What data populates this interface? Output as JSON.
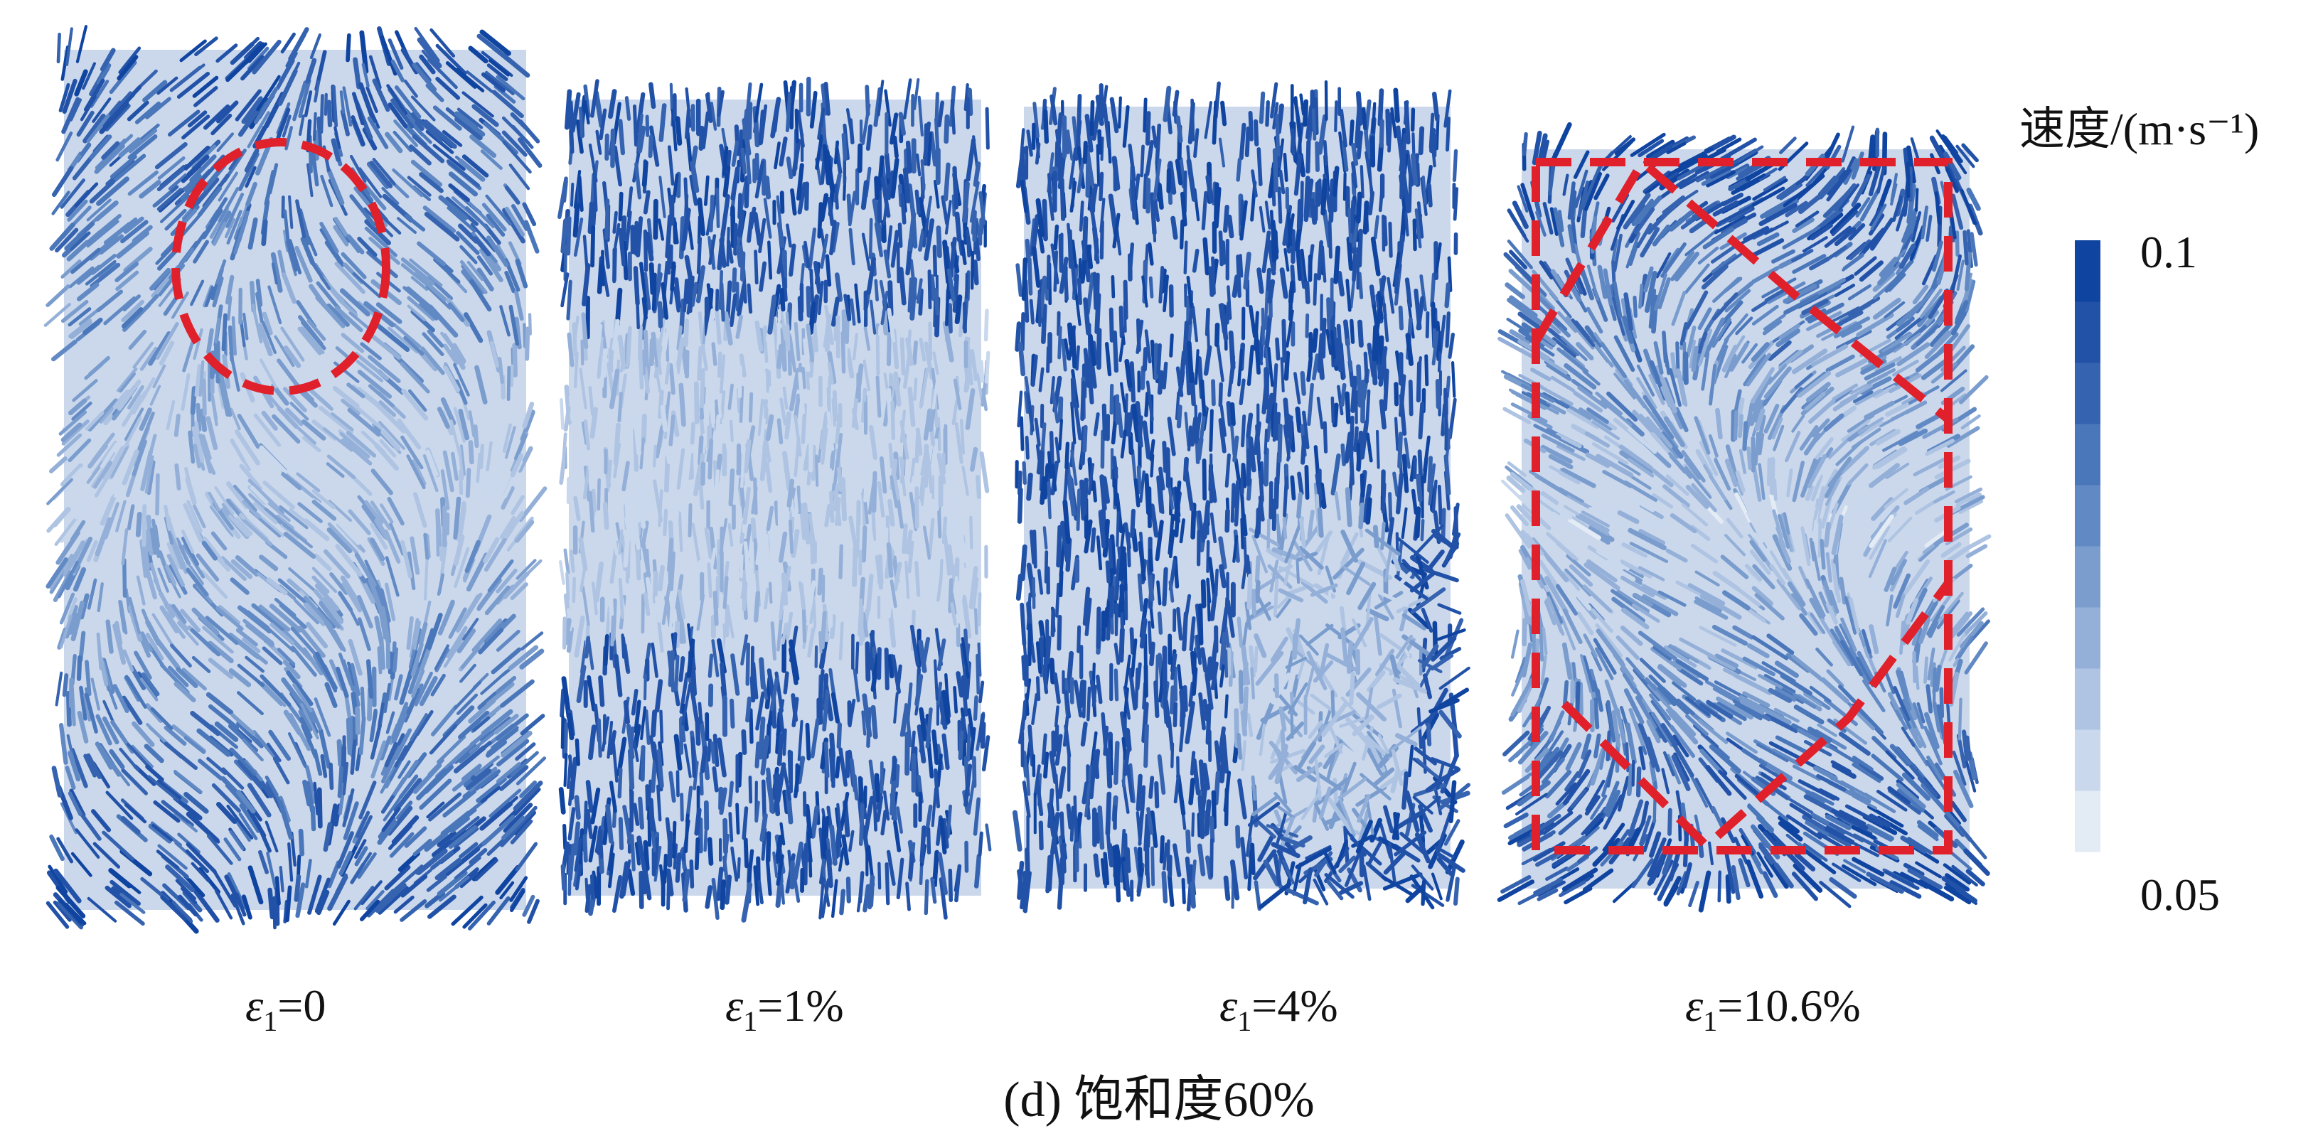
{
  "colorbar": {
    "title": "速度/(m·s⁻¹)",
    "max": "0.1",
    "min": "0.05",
    "colors": [
      "#e3ebf5",
      "#c9d8ec",
      "#aec4e2",
      "#94b0d8",
      "#7a9dce",
      "#6189c4",
      "#4a76ba",
      "#3563b0",
      "#2252a8",
      "#0f44a0"
    ]
  },
  "panels": [
    {
      "symbol": "ε",
      "subscript": "1",
      "value": "=0"
    },
    {
      "symbol": "ε",
      "subscript": "1",
      "value": "=1%"
    },
    {
      "symbol": "ε",
      "subscript": "1",
      "value": "=4%"
    },
    {
      "symbol": "ε",
      "subscript": "1",
      "value": "=10.6%"
    }
  ],
  "caption": "(d) 饱和度60%",
  "annotation_color": "#e0202a"
}
